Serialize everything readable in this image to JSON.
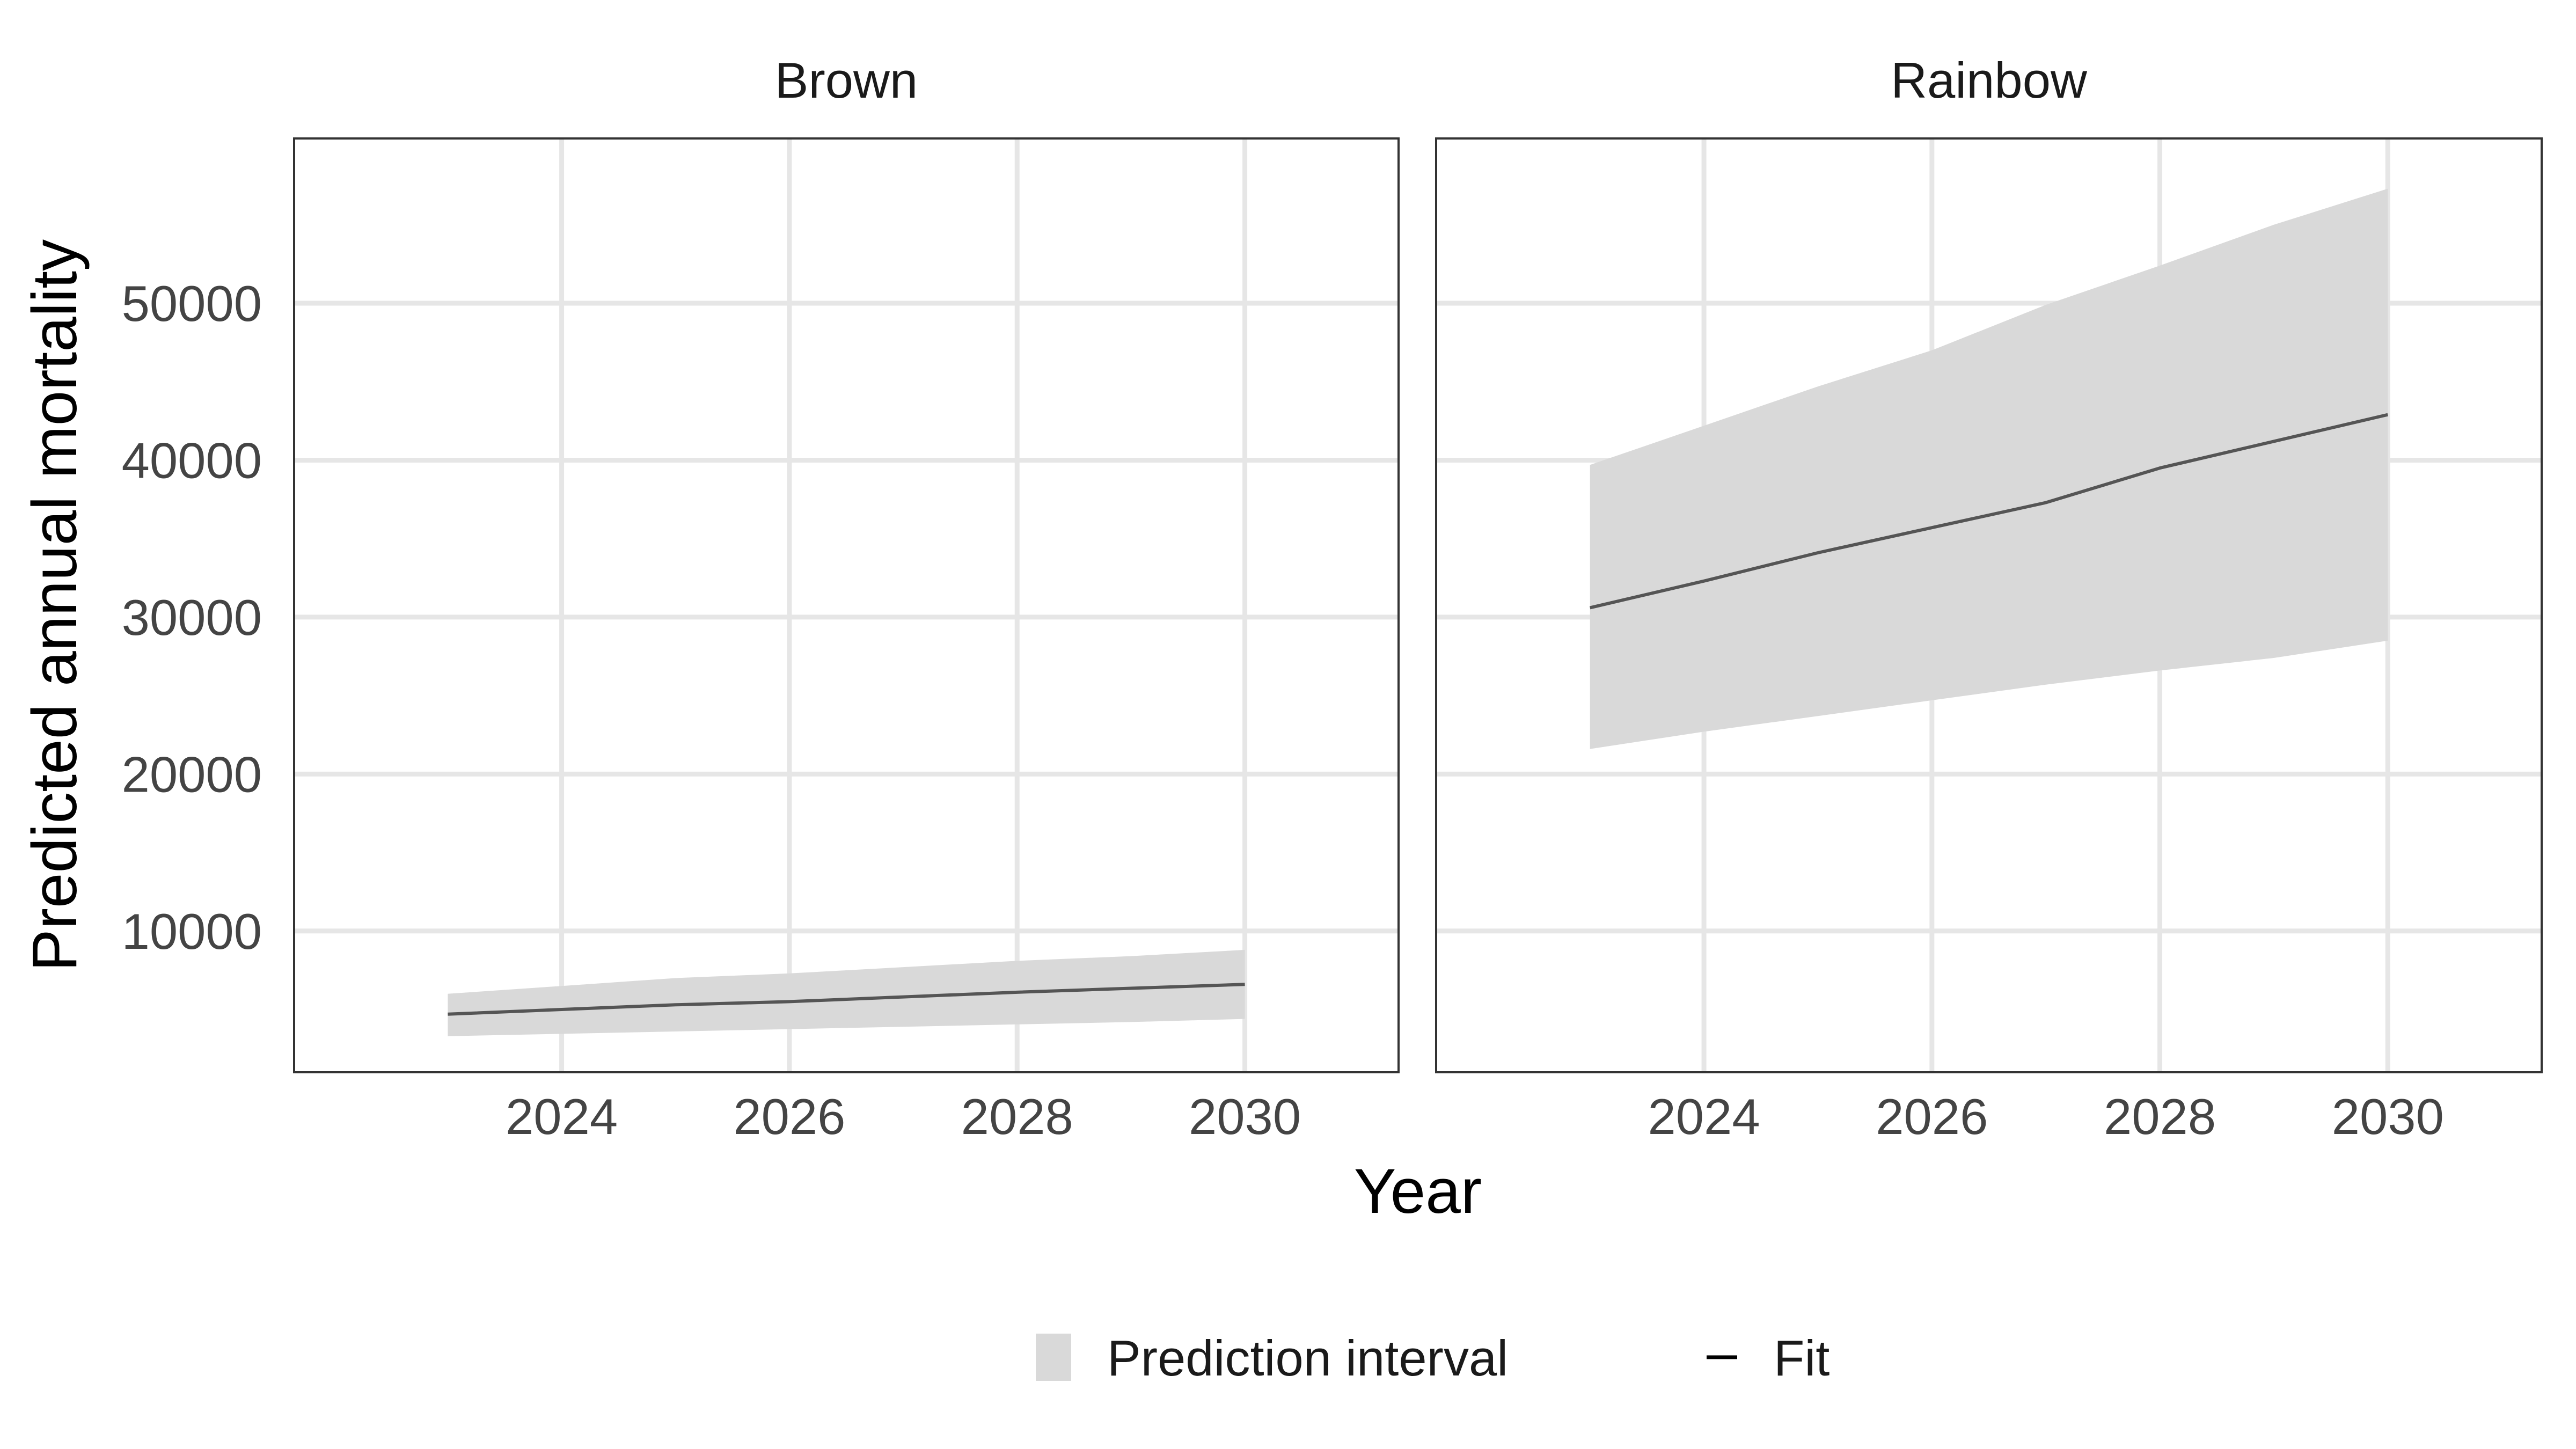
{
  "chart_data": {
    "type": "line",
    "xlabel": "Year",
    "ylabel": "Predicted annual mortality",
    "x_ticks": [
      2024,
      2026,
      2028,
      2030
    ],
    "y_ticks": [
      10000,
      20000,
      30000,
      40000,
      50000
    ],
    "xlim": [
      2021.65,
      2031.35
    ],
    "ylim": [
      1000,
      60500
    ],
    "grid": true,
    "legend": {
      "position": "bottom",
      "items": [
        {
          "label": "Prediction interval",
          "kind": "band"
        },
        {
          "label": "Fit",
          "kind": "line"
        }
      ]
    },
    "colors": {
      "band": "#d9d9d9",
      "fit": "#555555",
      "grid": "#e6e6e6",
      "panel_border": "#333333",
      "text": "#444444"
    },
    "panels": [
      {
        "title": "Brown",
        "x": [
          2023,
          2024,
          2025,
          2026,
          2027,
          2028,
          2029,
          2030
        ],
        "fit": [
          4700,
          5000,
          5300,
          5500,
          5800,
          6100,
          6350,
          6600
        ],
        "lower": [
          3300,
          3450,
          3600,
          3750,
          3900,
          4050,
          4200,
          4400
        ],
        "upper": [
          6000,
          6500,
          7000,
          7300,
          7700,
          8100,
          8400,
          8800
        ]
      },
      {
        "title": "Rainbow",
        "x": [
          2023,
          2024,
          2025,
          2026,
          2027,
          2028,
          2029,
          2030
        ],
        "fit": [
          30600,
          32300,
          34100,
          35700,
          37300,
          39500,
          41200,
          42900
        ],
        "lower": [
          21600,
          22700,
          23700,
          24700,
          25700,
          26600,
          27400,
          28500
        ],
        "upper": [
          39700,
          42200,
          44700,
          47000,
          49900,
          52400,
          55000,
          57300
        ]
      }
    ]
  }
}
